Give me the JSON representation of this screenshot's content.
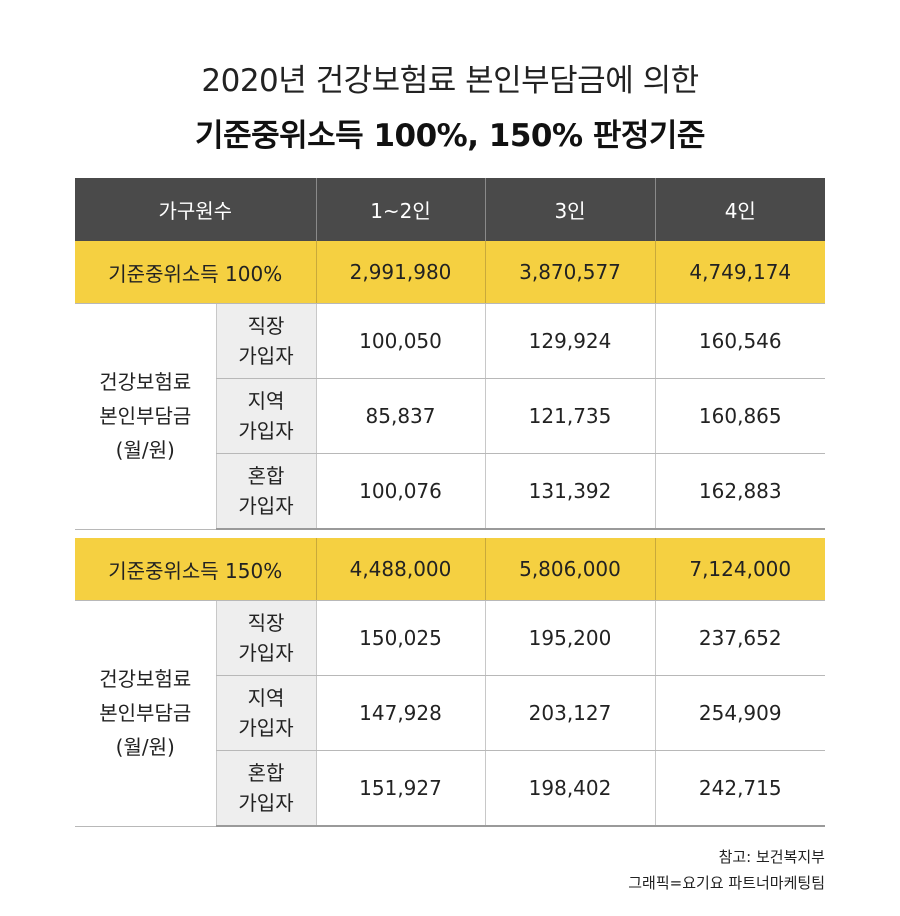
{
  "title": {
    "line1": "2020년 건강보험료 본인부담금에 의한",
    "line2": "기준중위소득 100%, 150% 판정기준"
  },
  "header": {
    "col0": "가구원수",
    "col1": "1~2인",
    "col2": "3인",
    "col3": "4인"
  },
  "table100": {
    "median_label": "기준중위소득 100%",
    "median_values": [
      "2,991,980",
      "3,870,577",
      "4,749,174"
    ],
    "group_line1": "건강보험료",
    "group_line2": "본인부담금",
    "group_line3": "(월/원)",
    "rows": [
      {
        "l1": "직장",
        "l2": "가입자",
        "v": [
          "100,050",
          "129,924",
          "160,546"
        ]
      },
      {
        "l1": "지역",
        "l2": "가입자",
        "v": [
          "85,837",
          "121,735",
          "160,865"
        ]
      },
      {
        "l1": "혼합",
        "l2": "가입자",
        "v": [
          "100,076",
          "131,392",
          "162,883"
        ]
      }
    ]
  },
  "table150": {
    "median_label": "기준중위소득 150%",
    "median_values": [
      "4,488,000",
      "5,806,000",
      "7,124,000"
    ],
    "group_line1": "건강보험료",
    "group_line2": "본인부담금",
    "group_line3": "(월/원)",
    "rows": [
      {
        "l1": "직장",
        "l2": "가입자",
        "v": [
          "150,025",
          "195,200",
          "237,652"
        ]
      },
      {
        "l1": "지역",
        "l2": "가입자",
        "v": [
          "147,928",
          "203,127",
          "254,909"
        ]
      },
      {
        "l1": "혼합",
        "l2": "가입자",
        "v": [
          "151,927",
          "198,402",
          "242,715"
        ]
      }
    ]
  },
  "source": {
    "line1": "참고: 보건복지부",
    "line2": "그래픽=요기요 파트너마케팅팀"
  },
  "colors": {
    "header_bg": "#4a4a4a",
    "median_bg": "#f5d041",
    "label_bg": "#eeeeee"
  }
}
